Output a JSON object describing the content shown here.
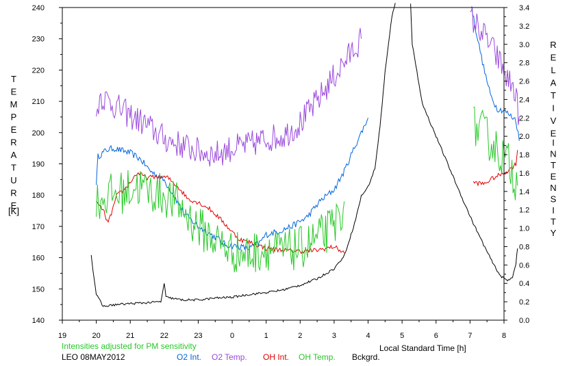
{
  "chart_data": {
    "type": "line",
    "x_axis": {
      "label": "Local Standard Time [h]",
      "range_hours": [
        19,
        32
      ],
      "tick_labels": [
        "19",
        "20",
        "21",
        "22",
        "23",
        "0",
        "1",
        "2",
        "3",
        "4",
        "5",
        "6",
        "7",
        "8"
      ]
    },
    "left_axis": {
      "label_letters": [
        "T",
        "E",
        "M",
        "P",
        "E",
        "R",
        "A",
        "T",
        "U",
        "R",
        "E"
      ],
      "unit": "[K]",
      "range": [
        140,
        240
      ],
      "tick_labels": [
        "140",
        "150",
        "160",
        "170",
        "180",
        "190",
        "200",
        "210",
        "220",
        "230",
        "240"
      ]
    },
    "right_axis": {
      "label_letters_1": [
        "R",
        "E",
        "L",
        "A",
        "T",
        "I",
        "V",
        "E"
      ],
      "label_letters_2": [
        "I",
        "N",
        "T",
        "E",
        "N",
        "S",
        "I",
        "T",
        "Y"
      ],
      "range": [
        0.0,
        3.4
      ],
      "tick_labels": [
        "0.0",
        "0.2",
        "0.4",
        "0.6",
        "0.8",
        "1.0",
        "1.2",
        "1.4",
        "1.6",
        "1.8",
        "2.0",
        "2.2",
        "2.4",
        "2.6",
        "2.8",
        "3.0",
        "3.2",
        "3.4"
      ]
    },
    "note": "Intensities adjusted for PM sensitivity",
    "station": "LEO 08MAY2012",
    "legend": [
      "O2 Int.",
      "O2 Temp.",
      "OH Int.",
      "OH Temp.",
      "Bckgrd."
    ],
    "series": [
      {
        "name": "O2 Int.",
        "axis": "right",
        "color": "#0064dc",
        "noise": 0.035,
        "segments": [
          [
            [
              20.0,
              1.5
            ],
            [
              20.05,
              1.78
            ],
            [
              20.3,
              1.85
            ],
            [
              20.5,
              1.87
            ],
            [
              21.0,
              1.82
            ],
            [
              21.3,
              1.75
            ],
            [
              21.6,
              1.62
            ],
            [
              22.0,
              1.52
            ],
            [
              22.3,
              1.35
            ],
            [
              22.6,
              1.15
            ],
            [
              23.0,
              1.02
            ],
            [
              23.3,
              0.95
            ],
            [
              23.6,
              0.88
            ],
            [
              23.8,
              0.82
            ],
            [
              24.2,
              0.8
            ],
            [
              24.5,
              0.78
            ],
            [
              24.8,
              0.84
            ],
            [
              25.0,
              0.93
            ],
            [
              25.4,
              0.97
            ],
            [
              25.8,
              1.03
            ],
            [
              26.2,
              1.12
            ],
            [
              26.6,
              1.3
            ],
            [
              27.0,
              1.42
            ],
            [
              27.3,
              1.62
            ],
            [
              27.6,
              1.88
            ],
            [
              27.9,
              2.12
            ],
            [
              28.0,
              2.2
            ]
          ],
          [
            [
              31.05,
              3.4
            ],
            [
              31.2,
              3.1
            ],
            [
              31.4,
              2.75
            ],
            [
              31.6,
              2.45
            ],
            [
              31.8,
              2.3
            ],
            [
              32.0,
              2.28
            ],
            [
              32.2,
              2.22
            ],
            [
              32.35,
              2.18
            ],
            [
              32.45,
              1.95
            ]
          ]
        ]
      },
      {
        "name": "O2 Temp.",
        "axis": "left",
        "color": "#9a48dc",
        "noise": 4.5,
        "segments": [
          [
            [
              20.0,
              205
            ],
            [
              20.1,
              212
            ],
            [
              20.5,
              209
            ],
            [
              20.9,
              206
            ],
            [
              21.4,
              203
            ],
            [
              22.0,
              198
            ],
            [
              22.5,
              196
            ],
            [
              23.0,
              194
            ],
            [
              23.5,
              193
            ],
            [
              24.0,
              195
            ],
            [
              24.5,
              196
            ],
            [
              25.0,
              198
            ],
            [
              25.5,
              199
            ],
            [
              26.0,
              203
            ],
            [
              26.5,
              210
            ],
            [
              27.0,
              218
            ],
            [
              27.4,
              224
            ],
            [
              27.8,
              230
            ]
          ],
          [
            [
              31.0,
              237
            ],
            [
              31.3,
              233
            ],
            [
              31.6,
              228
            ],
            [
              31.9,
              222
            ],
            [
              32.1,
              217
            ],
            [
              32.3,
              214
            ],
            [
              32.45,
              205
            ]
          ]
        ]
      },
      {
        "name": "OH Int.",
        "axis": "right",
        "color": "#e00000",
        "noise": 0.025,
        "segments": [
          [
            [
              20.0,
              1.28
            ],
            [
              20.2,
              1.2
            ],
            [
              20.35,
              1.05
            ],
            [
              20.6,
              1.35
            ],
            [
              20.9,
              1.45
            ],
            [
              21.2,
              1.6
            ],
            [
              21.5,
              1.55
            ],
            [
              21.8,
              1.56
            ],
            [
              22.1,
              1.55
            ],
            [
              22.4,
              1.45
            ],
            [
              22.7,
              1.32
            ],
            [
              23.0,
              1.28
            ],
            [
              23.3,
              1.22
            ],
            [
              23.6,
              1.12
            ],
            [
              23.9,
              1.0
            ],
            [
              24.2,
              0.88
            ],
            [
              24.6,
              0.84
            ],
            [
              25.0,
              0.78
            ],
            [
              25.5,
              0.76
            ],
            [
              26.0,
              0.75
            ],
            [
              26.5,
              0.76
            ],
            [
              27.0,
              0.8
            ],
            [
              27.3,
              0.73
            ]
          ],
          [
            [
              31.1,
              1.5
            ],
            [
              31.4,
              1.48
            ],
            [
              31.7,
              1.55
            ],
            [
              32.0,
              1.6
            ],
            [
              32.2,
              1.65
            ],
            [
              32.35,
              1.7
            ],
            [
              32.4,
              1.85
            ]
          ]
        ]
      },
      {
        "name": "OH Temp.",
        "axis": "left",
        "color": "#26c826",
        "noise": 7,
        "segments": [
          [
            [
              20.0,
              178
            ],
            [
              20.4,
              180
            ],
            [
              20.8,
              181
            ],
            [
              21.2,
              183
            ],
            [
              21.6,
              181
            ],
            [
              22.0,
              180
            ],
            [
              22.4,
              177
            ],
            [
              22.8,
              172
            ],
            [
              23.2,
              168
            ],
            [
              23.6,
              165
            ],
            [
              24.0,
              162
            ],
            [
              24.5,
              161
            ],
            [
              25.0,
              163
            ],
            [
              25.5,
              162
            ],
            [
              26.0,
              163
            ],
            [
              26.5,
              166
            ],
            [
              27.0,
              170
            ],
            [
              27.3,
              178
            ]
          ],
          [
            [
              31.1,
              202
            ],
            [
              31.4,
              200
            ],
            [
              31.7,
              196
            ],
            [
              32.0,
              192
            ],
            [
              32.2,
              189
            ],
            [
              32.4,
              183
            ]
          ]
        ]
      },
      {
        "name": "Bckgrd.",
        "axis": "right",
        "color": "#000000",
        "noise": 0.012,
        "segments": [
          [
            [
              19.85,
              0.72
            ],
            [
              19.9,
              0.55
            ],
            [
              20.0,
              0.28
            ],
            [
              20.2,
              0.15
            ],
            [
              20.6,
              0.17
            ],
            [
              21.0,
              0.18
            ],
            [
              21.5,
              0.19
            ],
            [
              21.9,
              0.2
            ],
            [
              22.0,
              0.4
            ],
            [
              22.05,
              0.25
            ],
            [
              22.5,
              0.22
            ],
            [
              23.0,
              0.22
            ],
            [
              23.5,
              0.24
            ],
            [
              24.0,
              0.25
            ],
            [
              24.5,
              0.28
            ],
            [
              25.0,
              0.3
            ],
            [
              25.5,
              0.33
            ],
            [
              26.0,
              0.38
            ],
            [
              26.5,
              0.45
            ],
            [
              27.0,
              0.56
            ],
            [
              27.3,
              0.7
            ],
            [
              27.6,
              1.05
            ],
            [
              27.8,
              1.35
            ],
            [
              28.0,
              1.45
            ],
            [
              28.2,
              1.65
            ],
            [
              28.35,
              2.1
            ],
            [
              28.5,
              2.7
            ],
            [
              28.7,
              3.3
            ],
            [
              28.8,
              3.45
            ]
          ],
          [
            [
              29.25,
              3.45
            ],
            [
              29.3,
              3.0
            ],
            [
              29.6,
              2.35
            ],
            [
              30.0,
              2.0
            ],
            [
              30.4,
              1.65
            ],
            [
              30.8,
              1.3
            ],
            [
              31.1,
              1.05
            ],
            [
              31.4,
              0.82
            ],
            [
              31.7,
              0.6
            ],
            [
              31.9,
              0.48
            ],
            [
              32.1,
              0.43
            ],
            [
              32.25,
              0.47
            ],
            [
              32.35,
              0.62
            ],
            [
              32.4,
              0.78
            ]
          ]
        ]
      }
    ]
  },
  "colors": {
    "o2_int": "#0064dc",
    "o2_temp": "#9a48dc",
    "oh_int": "#e00000",
    "oh_temp": "#26c826",
    "background": "#000000"
  }
}
